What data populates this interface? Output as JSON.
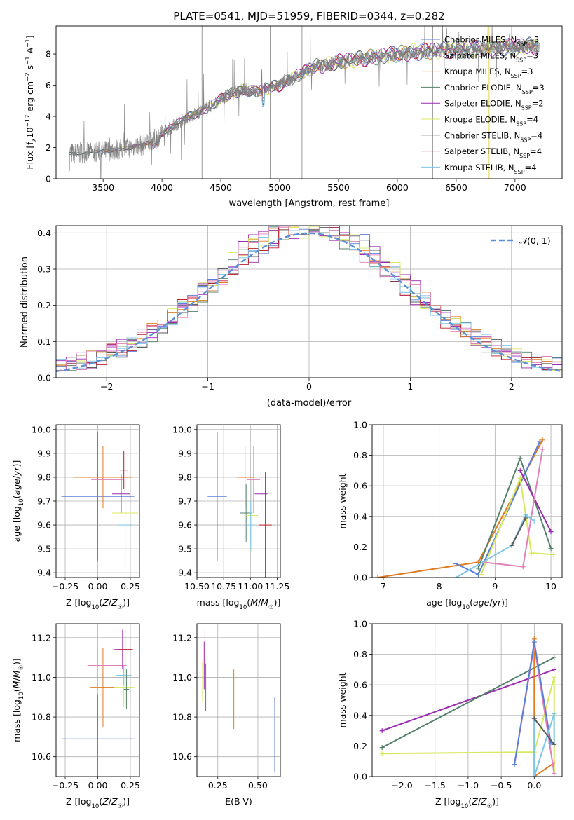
{
  "colors": {
    "cMilesChab": "#5b7fd6",
    "cMilesSalp": "#9b2ab3",
    "cMilesKrou": "#e07b21",
    "cElodChab": "#55816a",
    "cElodSalp": "#9b2ab3",
    "cElodKrou": "#d8e85c",
    "cStelChab": "#5a5a5a",
    "cStelSalp": "#c01c28",
    "cStelKrou": "#7dc6e8",
    "pink": "#e07fb8",
    "spec": "#808080",
    "normal": "#5b8fd6"
  },
  "legend_entries": [
    {
      "label": "Chabrier MILES, N",
      "sub": "SSP",
      "tail": "=3",
      "color": "cMilesChab"
    },
    {
      "label": "Salpeter MILES, N",
      "sub": "SSP",
      "tail": "=3",
      "color": "cMilesSalp"
    },
    {
      "label": "Kroupa MILES, N",
      "sub": "SSP",
      "tail": "=3",
      "color": "cMilesKrou"
    },
    {
      "label": "Chabrier ELODIE, N",
      "sub": "SSP",
      "tail": "=3",
      "color": "cElodChab"
    },
    {
      "label": "Salpeter ELODIE, N",
      "sub": "SSP",
      "tail": "=2",
      "color": "cElodSalp"
    },
    {
      "label": "Kroupa ELODIE, N",
      "sub": "SSP",
      "tail": "=4",
      "color": "cElodKrou"
    },
    {
      "label": "Chabrier STELIB, N",
      "sub": "SSP",
      "tail": "=4",
      "color": "cStelChab"
    },
    {
      "label": "Salpeter STELIB, N",
      "sub": "SSP",
      "tail": "=4",
      "color": "cStelSalp"
    },
    {
      "label": "Kroupa STELIB, N",
      "sub": "SSP",
      "tail": "=4",
      "color": "cStelKrou"
    }
  ],
  "chart_data": [
    {
      "id": "spectrum",
      "type": "line",
      "title": "PLATE=0541, MJD=51959, FIBERID=0344, z=0.282",
      "xlabel": "wavelength [Angstrom, rest frame]",
      "ylabel": "Flux [f_λ10^-17 erg cm^-2 s^-1 A^-1]",
      "xlim": [
        3100,
        7400
      ],
      "ylim": [
        0,
        9.8
      ],
      "xticks": [
        3500,
        4000,
        4500,
        5000,
        5500,
        6000,
        6500,
        7000
      ],
      "yticks": [
        0,
        2,
        4,
        6,
        8
      ],
      "observed_continuum": {
        "x": [
          3210,
          3300,
          3400,
          3500,
          3600,
          3700,
          3800,
          3900,
          4000,
          4100,
          4200,
          4300,
          4400,
          4500,
          4600,
          4700,
          4800,
          4900,
          5000,
          5100,
          5200,
          5300,
          5400,
          5500,
          5600,
          5700,
          5800,
          5900,
          6000,
          6100,
          6200,
          6300,
          6400,
          6500,
          6600,
          6700,
          6800,
          6900,
          7000,
          7100,
          7200
        ],
        "y": [
          1.6,
          1.65,
          1.7,
          1.75,
          1.85,
          1.95,
          2.1,
          2.3,
          2.9,
          3.4,
          3.9,
          4.2,
          4.6,
          5.1,
          5.5,
          5.7,
          5.6,
          5.8,
          6.0,
          6.4,
          6.8,
          7.2,
          7.3,
          7.5,
          7.6,
          7.7,
          7.8,
          7.9,
          8.0,
          8.1,
          8.15,
          8.2,
          8.25,
          8.3,
          8.3,
          8.35,
          8.4,
          8.45,
          8.4,
          8.5,
          8.5
        ]
      },
      "series": [
        "cMilesChab",
        "cMilesSalp",
        "cMilesKrou",
        "cElodChab",
        "cElodSalp",
        "cElodKrou",
        "cStelChab",
        "cStelSalp",
        "cStelKrou"
      ]
    },
    {
      "id": "residuals",
      "type": "area",
      "xlabel": "(data-model)/error",
      "ylabel": "Normed distribution",
      "xlim": [
        -2.5,
        2.5
      ],
      "ylim": [
        0,
        0.42
      ],
      "xticks": [
        -2,
        -1,
        0,
        1,
        2
      ],
      "yticks": [
        0.0,
        0.1,
        0.2,
        0.3,
        0.4
      ],
      "legend": "top-right",
      "normal_label": "N(0, 1)"
    },
    {
      "id": "age_vs_Z",
      "type": "scatter",
      "xlabel": "Z [log10(Z/Z☉)]",
      "ylabel": "age  [log10(age/yr)]",
      "xlim": [
        -0.32,
        0.32
      ],
      "ylim": [
        9.38,
        10.02
      ],
      "xticks": [
        -0.25,
        0.0,
        0.25
      ],
      "yticks": [
        9.4,
        9.5,
        9.6,
        9.7,
        9.8,
        9.9,
        10.0
      ],
      "points": [
        {
          "x": 0.0,
          "y": 9.72,
          "xerr": 0.28,
          "yerr": 0.27,
          "color": "cMilesChab"
        },
        {
          "x": 0.04,
          "y": 9.8,
          "xerr": 0.23,
          "yerr": 0.13,
          "color": "cMilesKrou"
        },
        {
          "x": 0.18,
          "y": 9.73,
          "xerr": 0.07,
          "yerr": 0.08,
          "color": "cMilesSalp"
        },
        {
          "x": 0.21,
          "y": 9.65,
          "xerr": 0.1,
          "yerr": 0.15,
          "color": "cElodKrou"
        },
        {
          "x": 0.21,
          "y": 9.6,
          "xerr": 0.05,
          "yerr": 0.2,
          "color": "cStelKrou"
        },
        {
          "x": 0.07,
          "y": 9.79,
          "xerr": 0.12,
          "yerr": 0.13,
          "color": "pink"
        },
        {
          "x": 0.2,
          "y": 9.83,
          "xerr": 0.03,
          "yerr": 0.08,
          "color": "cStelSalp"
        }
      ]
    },
    {
      "id": "age_vs_mass",
      "type": "scatter",
      "xlabel": "mass [log10(M/M☉)]",
      "ylabel": "",
      "xlim": [
        10.5,
        11.28
      ],
      "ylim": [
        9.38,
        10.02
      ],
      "xticks": [
        10.5,
        10.75,
        11.0,
        11.25
      ],
      "yticks": [
        9.4,
        9.5,
        9.6,
        9.7,
        9.8,
        9.9,
        10.0
      ],
      "points": [
        {
          "x": 10.69,
          "y": 9.72,
          "xerr": 0.09,
          "yerr": 0.27,
          "color": "cMilesChab"
        },
        {
          "x": 10.95,
          "y": 9.8,
          "xerr": 0.08,
          "yerr": 0.13,
          "color": "cMilesKrou"
        },
        {
          "x": 11.1,
          "y": 9.73,
          "xerr": 0.06,
          "yerr": 0.08,
          "color": "cMilesSalp"
        },
        {
          "x": 10.96,
          "y": 9.65,
          "xerr": 0.06,
          "yerr": 0.12,
          "color": "cElodChab"
        },
        {
          "x": 11.01,
          "y": 9.64,
          "xerr": 0.06,
          "yerr": 0.15,
          "color": "cElodKrou"
        },
        {
          "x": 11.03,
          "y": 9.79,
          "xerr": 0.06,
          "yerr": 0.14,
          "color": "pink"
        },
        {
          "x": 11.14,
          "y": 9.6,
          "xerr": 0.06,
          "yerr": 0.22,
          "color": "cStelSalp"
        },
        {
          "x": 11.0,
          "y": 9.6,
          "xerr": 0.04,
          "yerr": 0.1,
          "color": "cStelKrou"
        }
      ]
    },
    {
      "id": "weight_vs_age",
      "type": "line",
      "xlabel": "age  [log10(age/yr)]",
      "ylabel": "mass weight",
      "xlim": [
        6.8,
        10.2
      ],
      "ylim": [
        0,
        1.0
      ],
      "xticks": [
        7,
        8,
        9,
        10
      ],
      "yticks": [
        0.0,
        0.2,
        0.4,
        0.6,
        0.8,
        1.0
      ],
      "series": [
        {
          "color": "cMilesKrou",
          "x": [
            6.9,
            8.7,
            9.85
          ],
          "y": [
            0.0,
            0.1,
            0.9
          ]
        },
        {
          "color": "cMilesChab",
          "x": [
            8.3,
            8.7,
            9.8
          ],
          "y": [
            0.09,
            0.02,
            0.89
          ]
        },
        {
          "color": "cElodChab",
          "x": [
            8.7,
            9.45,
            10.0
          ],
          "y": [
            0.06,
            0.78,
            0.19
          ]
        },
        {
          "color": "cMilesSalp",
          "x": [
            9.45,
            10.0
          ],
          "y": [
            0.7,
            0.3
          ]
        },
        {
          "color": "cElodKrou",
          "x": [
            8.75,
            9.45,
            9.65,
            10.05
          ],
          "y": [
            0.02,
            0.65,
            0.16,
            0.15
          ]
        },
        {
          "color": "pink",
          "x": [
            8.8,
            9.5,
            9.85
          ],
          "y": [
            0.1,
            0.07,
            0.84
          ]
        },
        {
          "color": "cStelKrou",
          "x": [
            8.3,
            9.3,
            9.55,
            9.7
          ],
          "y": [
            0.0,
            0.21,
            0.41,
            0.37
          ]
        },
        {
          "color": "cStelChab",
          "x": [
            9.3,
            9.55
          ],
          "y": [
            0.21,
            0.39
          ]
        }
      ]
    },
    {
      "id": "mass_vs_Z",
      "type": "scatter",
      "xlabel": "Z [log10(Z/Z☉)]",
      "ylabel": "mass [log10(M/M☉)]",
      "xlim": [
        -0.32,
        0.32
      ],
      "ylim": [
        10.5,
        11.27
      ],
      "xticks": [
        -0.25,
        0.0,
        0.25
      ],
      "yticks": [
        10.6,
        10.8,
        11.0,
        11.2
      ],
      "points": [
        {
          "x": 0.0,
          "y": 10.69,
          "xerr": 0.28,
          "yerr": 0.22,
          "color": "cMilesChab"
        },
        {
          "x": 0.04,
          "y": 10.95,
          "xerr": 0.1,
          "yerr": 0.2,
          "color": "cMilesKrou"
        },
        {
          "x": 0.07,
          "y": 11.06,
          "xerr": 0.15,
          "yerr": 0.06,
          "color": "pink"
        },
        {
          "x": 0.2,
          "y": 10.95,
          "xerr": 0.08,
          "yerr": 0.1,
          "color": "cElodKrou"
        },
        {
          "x": 0.2,
          "y": 11.01,
          "xerr": 0.06,
          "yerr": 0.05,
          "color": "cStelKrou"
        },
        {
          "x": 0.22,
          "y": 10.94,
          "xerr": 0.02,
          "yerr": 0.1,
          "color": "cElodChab"
        },
        {
          "x": 0.19,
          "y": 11.14,
          "xerr": 0.07,
          "yerr": 0.1,
          "color": "cMilesSalp"
        },
        {
          "x": 0.21,
          "y": 11.14,
          "xerr": 0.06,
          "yerr": 0.1,
          "color": "cStelSalp"
        }
      ]
    },
    {
      "id": "mass_vs_ebv",
      "type": "scatter",
      "xlabel": "E(B-V)",
      "ylabel": "",
      "xlim": [
        0.12,
        0.64
      ],
      "ylim": [
        10.5,
        11.27
      ],
      "xticks": [
        0.25,
        0.5
      ],
      "yticks": [
        10.6,
        10.8,
        11.0,
        11.2
      ],
      "points": [
        {
          "x": 0.155,
          "y": 10.98,
          "yerr": 0.1,
          "color": "cElodKrou"
        },
        {
          "x": 0.165,
          "y": 11.06,
          "yerr": 0.12,
          "color": "cMilesSalp"
        },
        {
          "x": 0.17,
          "y": 11.14,
          "yerr": 0.1,
          "color": "cStelSalp"
        },
        {
          "x": 0.175,
          "y": 10.95,
          "yerr": 0.12,
          "color": "cElodChab"
        },
        {
          "x": 0.345,
          "y": 11.0,
          "yerr": 0.12,
          "color": "pink"
        },
        {
          "x": 0.35,
          "y": 10.89,
          "yerr": 0.15,
          "color": "cMilesKrou"
        },
        {
          "x": 0.605,
          "y": 10.71,
          "yerr": 0.19,
          "color": "cMilesChab"
        }
      ]
    },
    {
      "id": "weight_vs_Z",
      "type": "line",
      "xlabel": "Z [log10(Z/Z☉)]",
      "ylabel": "mass weight",
      "xlim": [
        -2.45,
        0.42
      ],
      "ylim": [
        0,
        1.0
      ],
      "xticks": [
        -2.0,
        -1.5,
        -1.0,
        -0.5,
        0.0
      ],
      "yticks": [
        0.0,
        0.2,
        0.4,
        0.6,
        0.8,
        1.0
      ],
      "series": [
        {
          "color": "cMilesSalp",
          "x": [
            -2.3,
            0.3
          ],
          "y": [
            0.3,
            0.7
          ]
        },
        {
          "color": "cElodChab",
          "x": [
            -2.3,
            0.3
          ],
          "y": [
            0.19,
            0.78
          ]
        },
        {
          "color": "cElodKrou",
          "x": [
            -2.3,
            0.0,
            0.3,
            0.3
          ],
          "y": [
            0.15,
            0.16,
            0.65,
            0.02
          ]
        },
        {
          "color": "cMilesKrou",
          "x": [
            0.0,
            0.0,
            0.3
          ],
          "y": [
            0.9,
            0.0,
            0.09
          ]
        },
        {
          "color": "pink",
          "x": [
            -0.3,
            0.0,
            0.3
          ],
          "y": [
            0.08,
            0.86,
            0.02
          ]
        },
        {
          "color": "cMilesChab",
          "x": [
            -0.3,
            0.0,
            0.25
          ],
          "y": [
            0.08,
            0.88,
            0.22
          ]
        },
        {
          "color": "cStelKrou",
          "x": [
            0.0,
            0.0,
            0.3,
            0.3
          ],
          "y": [
            0.38,
            0.0,
            0.41,
            0.21
          ]
        },
        {
          "color": "cStelChab",
          "x": [
            0.0,
            0.3
          ],
          "y": [
            0.38,
            0.21
          ]
        }
      ]
    }
  ]
}
